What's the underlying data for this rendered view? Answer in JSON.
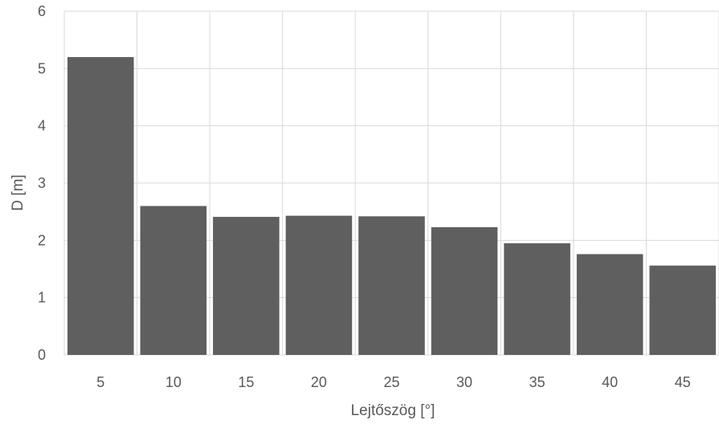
{
  "chart_data": {
    "type": "bar",
    "title": "",
    "xlabel": "Lejtőszög [°]",
    "ylabel": "D [m]",
    "categories": [
      "5",
      "10",
      "15",
      "20",
      "25",
      "30",
      "35",
      "40",
      "45"
    ],
    "values": [
      5.2,
      2.6,
      2.41,
      2.43,
      2.42,
      2.23,
      1.95,
      1.76,
      1.56
    ],
    "ylim": [
      0,
      6
    ],
    "yticks": [
      "0",
      "1",
      "2",
      "3",
      "4",
      "5",
      "6"
    ],
    "grid": true,
    "legend": "none",
    "colors": {
      "bar": "#5f5f5f",
      "grid": "#d9d9d9",
      "text": "#595959"
    }
  }
}
